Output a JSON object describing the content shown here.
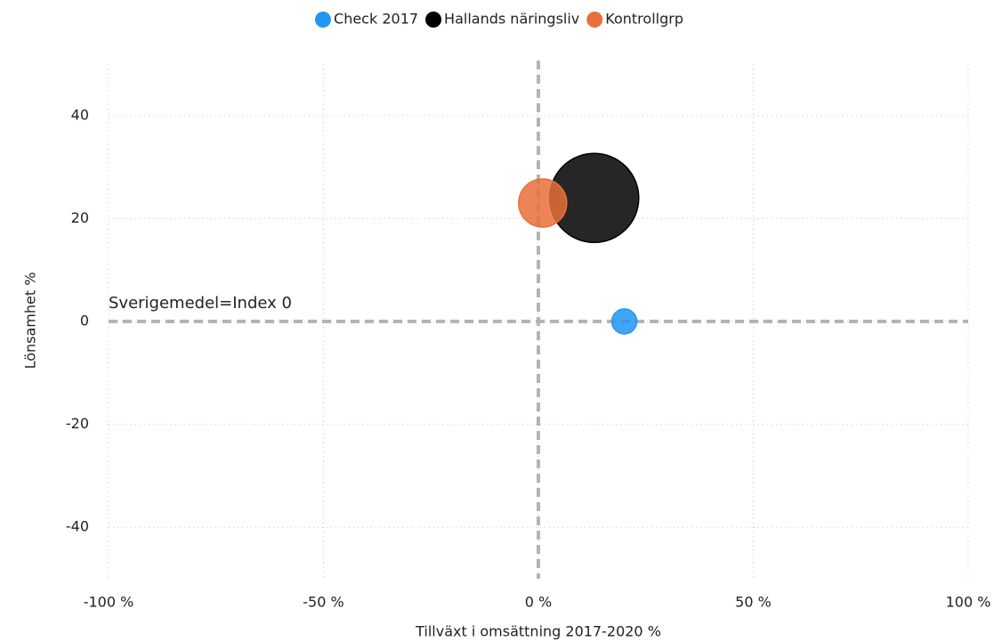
{
  "chart_data": {
    "type": "bubble",
    "xlabel": "Tillväxt i omsättning 2017-2020 %",
    "ylabel": "Lönsamhet %",
    "annotation": "Sverigemedel=Index 0",
    "xlim": [
      -100,
      100
    ],
    "xticks": [
      {
        "value": -100,
        "label": "-100 %"
      },
      {
        "value": -50,
        "label": "-50 %"
      },
      {
        "value": 0,
        "label": "0 %"
      },
      {
        "value": 50,
        "label": "50 %"
      },
      {
        "value": 100,
        "label": "100 %"
      }
    ],
    "ylim": [
      -50,
      50
    ],
    "yticks": [
      -40,
      -20,
      0,
      20,
      40
    ],
    "grid": true,
    "reference_x": 0,
    "reference_y": 0,
    "legend": "top",
    "series": [
      {
        "name": "Check 2017",
        "color": "#2196f3",
        "x": [
          20
        ],
        "y": [
          0
        ],
        "size": [
          196
        ]
      },
      {
        "name": "Hallands näringsliv",
        "color": "#000000",
        "x": [
          13
        ],
        "y": [
          24
        ],
        "size": [
          2500
        ]
      },
      {
        "name": "Kontrollgrp",
        "color": "#e8703a",
        "x": [
          1
        ],
        "y": [
          23
        ],
        "size": [
          729
        ]
      }
    ]
  }
}
